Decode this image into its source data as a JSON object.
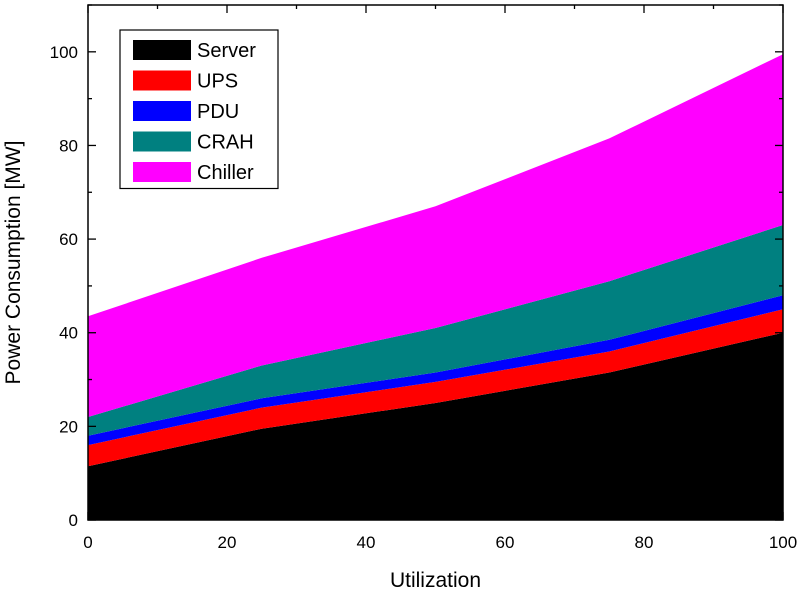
{
  "chart_data": {
    "type": "area",
    "stacked": true,
    "xlabel": "Utilization",
    "ylabel": "Power Consumption [MW]",
    "xlim": [
      0,
      100
    ],
    "ylim": [
      0,
      110
    ],
    "x": [
      0,
      25,
      50,
      75,
      100
    ],
    "xticks": [
      0,
      20,
      40,
      60,
      80,
      100
    ],
    "yticks": [
      0,
      20,
      40,
      60,
      80,
      100
    ],
    "grid": false,
    "legend_position": "top-left",
    "series": [
      {
        "name": "Server",
        "color": "#000000",
        "values": [
          11.5,
          19.5,
          25.0,
          31.5,
          40.0
        ]
      },
      {
        "name": "UPS",
        "color": "#ff0000",
        "values": [
          4.5,
          4.5,
          4.5,
          4.5,
          5.0
        ]
      },
      {
        "name": "PDU",
        "color": "#0000ff",
        "values": [
          2.0,
          2.0,
          2.0,
          2.5,
          3.0
        ]
      },
      {
        "name": "CRAH",
        "color": "#008080",
        "values": [
          4.0,
          7.0,
          9.5,
          12.5,
          15.0
        ]
      },
      {
        "name": "Chiller",
        "color": "#ff00ff",
        "values": [
          21.5,
          23.0,
          26.0,
          30.5,
          36.5
        ]
      }
    ]
  }
}
